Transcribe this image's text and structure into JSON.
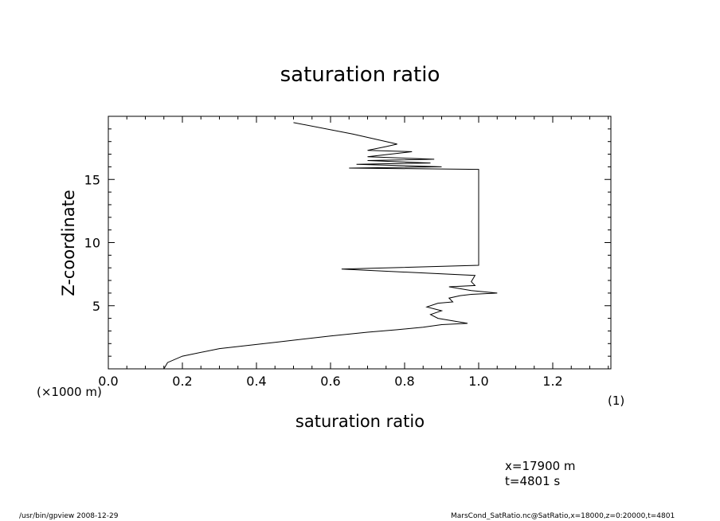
{
  "chart_data": {
    "type": "line",
    "title": "saturation ratio",
    "xlabel": "saturation ratio",
    "ylabel": "Z-coordinate",
    "xlim": [
      0.0,
      1.36
    ],
    "ylim": [
      0,
      20
    ],
    "x_ticks": [
      "0.0",
      "0.2",
      "0.4",
      "0.6",
      "0.8",
      "1.0",
      "1.2"
    ],
    "x_tick_values": [
      0.0,
      0.2,
      0.4,
      0.6,
      0.8,
      1.0,
      1.2
    ],
    "y_ticks": [
      "5",
      "10",
      "15"
    ],
    "y_tick_values": [
      5,
      10,
      15
    ],
    "y_unit_note": "(×1000 m)",
    "x_unit_note": "(1)",
    "grid": false,
    "series": [
      {
        "x": [
          0.15,
          0.16,
          0.2,
          0.3,
          0.45,
          0.6,
          0.7,
          0.78,
          0.85,
          0.9,
          0.97,
          0.89,
          0.87,
          0.9,
          0.86,
          0.89,
          0.93,
          0.92,
          0.95,
          0.98,
          1.05,
          0.98,
          0.92,
          0.99,
          0.98,
          0.99,
          0.63,
          1.0,
          1.0,
          1.0,
          0.65,
          0.9,
          0.67,
          0.87,
          0.7,
          0.88,
          0.7,
          0.82,
          0.7,
          0.75,
          0.78,
          0.66,
          0.5
        ],
        "y": [
          0.0,
          0.5,
          1.0,
          1.6,
          2.1,
          2.6,
          2.9,
          3.1,
          3.3,
          3.5,
          3.6,
          4.0,
          4.3,
          4.6,
          4.9,
          5.2,
          5.3,
          5.6,
          5.8,
          5.9,
          6.0,
          6.2,
          6.5,
          6.6,
          6.9,
          7.4,
          7.9,
          8.2,
          12.0,
          15.8,
          15.9,
          16.0,
          16.2,
          16.3,
          16.5,
          16.6,
          16.8,
          17.2,
          17.3,
          17.6,
          17.8,
          18.6,
          19.5
        ]
      }
    ]
  },
  "footer": {
    "coords_x": "x=17900  m",
    "coords_t": "t=4801  s",
    "left": "/usr/bin/gpview   2008-12-29",
    "right": "MarsCond_SatRatio.nc@SatRatio,x=18000,z=0:20000,t=4801"
  }
}
